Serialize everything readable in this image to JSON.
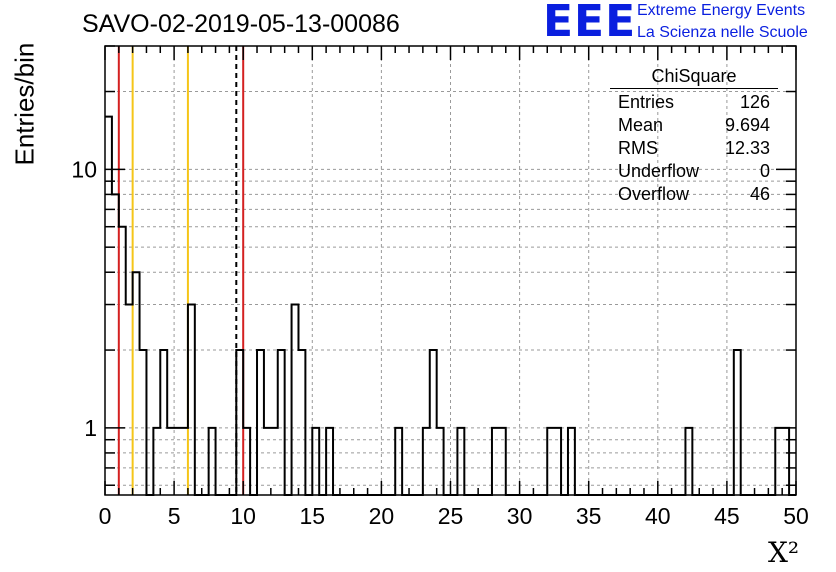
{
  "header": {
    "title": "SAVO-02-2019-05-13-00086",
    "logo_text": "EEE",
    "logo_line1": "Extreme Energy Events",
    "logo_line2": "La Scienza nelle Scuole"
  },
  "stats_box": {
    "title": "ChiSquare",
    "rows": [
      {
        "label": "Entries",
        "value": "126"
      },
      {
        "label": "Mean",
        "value": "9.694"
      },
      {
        "label": "RMS",
        "value": "12.33"
      },
      {
        "label": "Underflow",
        "value": "0"
      },
      {
        "label": "Overflow",
        "value": "46"
      }
    ]
  },
  "colors": {
    "red_line": "#d42020",
    "yellow_line": "#f5c518",
    "grid": "#9a9a9a",
    "histogram": "#000000"
  },
  "chart_data": {
    "type": "histogram",
    "title": "SAVO-02-2019-05-13-00086",
    "xlabel": "X²",
    "ylabel": "Entries/bin",
    "xlim": [
      0,
      50
    ],
    "ylim": [
      0.55,
      30
    ],
    "yscale": "log",
    "bin_width": 0.5,
    "x_ticks": [
      0,
      5,
      10,
      15,
      20,
      25,
      30,
      35,
      40,
      45,
      50
    ],
    "y_tick_labels": [
      {
        "value": 1,
        "label": "1"
      },
      {
        "value": 10,
        "label": "10"
      }
    ],
    "bins": [
      {
        "x": 0.0,
        "count": 16
      },
      {
        "x": 0.5,
        "count": 8
      },
      {
        "x": 1.0,
        "count": 6
      },
      {
        "x": 1.5,
        "count": 3
      },
      {
        "x": 2.0,
        "count": 4
      },
      {
        "x": 2.5,
        "count": 2
      },
      {
        "x": 3.5,
        "count": 1
      },
      {
        "x": 4.0,
        "count": 2
      },
      {
        "x": 4.5,
        "count": 1
      },
      {
        "x": 5.0,
        "count": 1
      },
      {
        "x": 5.5,
        "count": 1
      },
      {
        "x": 6.0,
        "count": 3
      },
      {
        "x": 7.5,
        "count": 1
      },
      {
        "x": 9.5,
        "count": 2
      },
      {
        "x": 10.0,
        "count": 1
      },
      {
        "x": 11.0,
        "count": 2
      },
      {
        "x": 11.5,
        "count": 1
      },
      {
        "x": 12.0,
        "count": 1
      },
      {
        "x": 12.5,
        "count": 2
      },
      {
        "x": 13.5,
        "count": 3
      },
      {
        "x": 14.0,
        "count": 2
      },
      {
        "x": 15.0,
        "count": 1
      },
      {
        "x": 16.0,
        "count": 1
      },
      {
        "x": 21.0,
        "count": 1
      },
      {
        "x": 23.0,
        "count": 1
      },
      {
        "x": 23.5,
        "count": 2
      },
      {
        "x": 24.0,
        "count": 1
      },
      {
        "x": 25.5,
        "count": 1
      },
      {
        "x": 28.0,
        "count": 1
      },
      {
        "x": 28.5,
        "count": 1
      },
      {
        "x": 32.0,
        "count": 1
      },
      {
        "x": 32.5,
        "count": 1
      },
      {
        "x": 33.5,
        "count": 1
      },
      {
        "x": 42.0,
        "count": 1
      },
      {
        "x": 45.5,
        "count": 2
      },
      {
        "x": 48.5,
        "count": 1
      },
      {
        "x": 49.0,
        "count": 1
      }
    ],
    "vertical_lines": [
      {
        "x": 1.0,
        "color": "red",
        "style": "solid"
      },
      {
        "x": 2.0,
        "color": "yellow",
        "style": "solid"
      },
      {
        "x": 6.0,
        "color": "yellow",
        "style": "solid"
      },
      {
        "x": 9.5,
        "color": "black",
        "style": "dashed"
      },
      {
        "x": 10.0,
        "color": "red",
        "style": "solid"
      }
    ]
  }
}
